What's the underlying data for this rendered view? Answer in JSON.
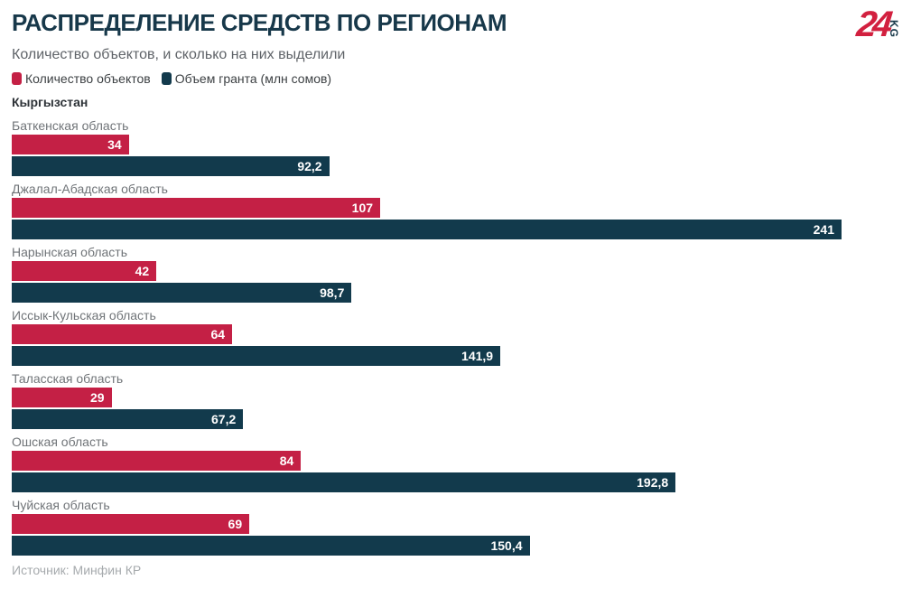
{
  "header": {
    "title": "РАСПРЕДЕЛЕНИЕ СРЕДСТВ ПО РЕГИОНАМ",
    "subtitle": "Количество объектов, и сколько на них выделили",
    "logo": {
      "number": "24",
      "suffix": "KG"
    }
  },
  "chart_data": {
    "type": "bar",
    "orientation": "horizontal",
    "group_label": "Кыргызстан",
    "legend_position": "top",
    "value_labels": "inside-end",
    "xmax": 241,
    "categories": [
      "Баткенская область",
      "Джалал-Абадская область",
      "Нарынская область",
      "Иссык-Кульская область",
      "Таласская область",
      "Ошская область",
      "Чуйская область"
    ],
    "series": [
      {
        "name": "Количество объектов",
        "color": "#c42045",
        "values": [
          34,
          107,
          42,
          64,
          29,
          84,
          69
        ],
        "labels": [
          "34",
          "107",
          "42",
          "64",
          "29",
          "84",
          "69"
        ]
      },
      {
        "name": "Объем гранта (млн сомов)",
        "color": "#123a4c",
        "values": [
          92.2,
          241,
          98.7,
          141.9,
          67.2,
          192.8,
          150.4
        ],
        "labels": [
          "92,2",
          "241",
          "98,7",
          "141,9",
          "67,2",
          "192,8",
          "150,4"
        ]
      }
    ]
  },
  "footer": {
    "source": "Источник: Минфин КР"
  },
  "colors": {
    "title": "#17384a",
    "series_red": "#c42045",
    "series_navy": "#123a4c",
    "logo_red": "#d2203f",
    "logo_navy": "#17384a"
  }
}
